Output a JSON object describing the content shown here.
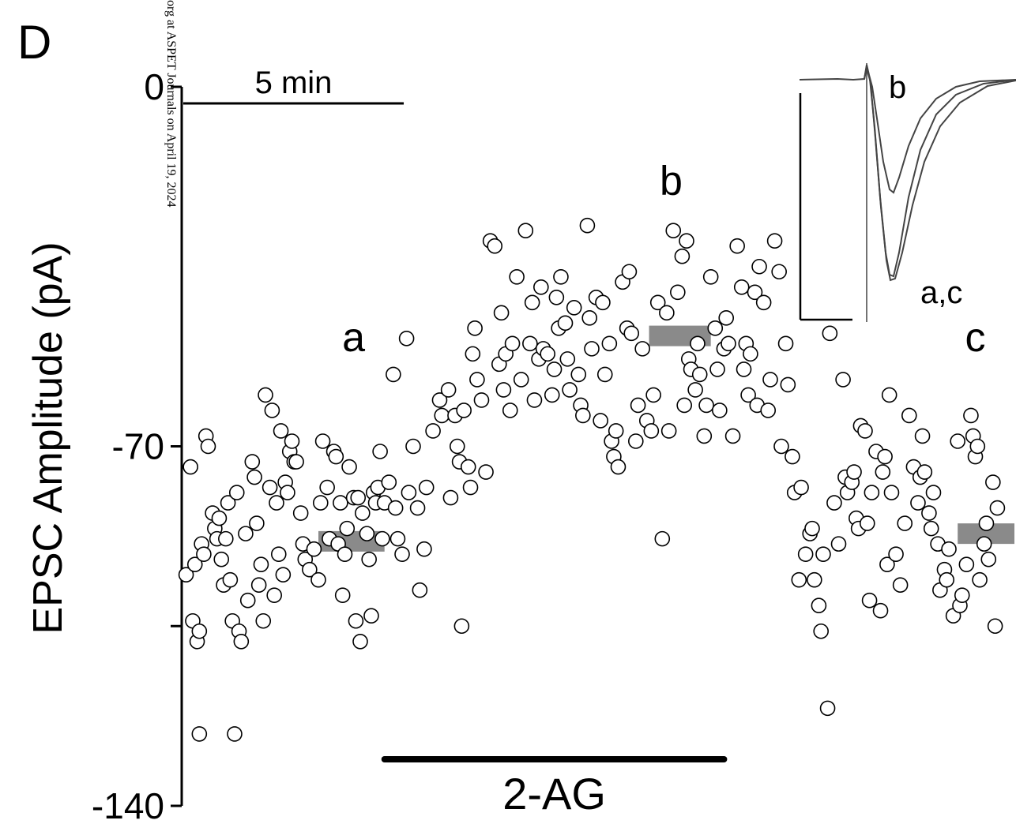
{
  "chart_data": {
    "type": "scatter",
    "panel_label": "D",
    "ylabel": "EPSC Amplitude (pA)",
    "xlabel": "",
    "ylim": [
      -140,
      0
    ],
    "yticks": [
      {
        "value": 0,
        "label": "0"
      },
      {
        "value": -70,
        "label": "-70"
      },
      {
        "value": -140,
        "label": "-140"
      }
    ],
    "x_units": "min",
    "xlim": [
      0,
      18.6
    ],
    "time_scale_bar": {
      "label": "5 min",
      "minutes": 5
    },
    "drug": {
      "label": "2-AG",
      "start_min": 4.6,
      "end_min": 12.3
    },
    "epoch_labels": [
      {
        "label": "a",
        "x": 3.9,
        "y": -51.5
      },
      {
        "label": "b",
        "x": 11.1,
        "y": -21.0
      },
      {
        "label": "c",
        "x": 18.0,
        "y": -51.5
      }
    ],
    "epoch_means": [
      {
        "label": "a",
        "x_start": 3.1,
        "x_end": 4.6,
        "y": -88.5
      },
      {
        "label": "b",
        "x_start": 10.6,
        "x_end": 12.0,
        "y": -48.5
      },
      {
        "label": "c",
        "x_start": 17.6,
        "x_end": 19.0,
        "y": -87.0
      }
    ],
    "inset": {
      "labels": {
        "top": "b",
        "bottom": "a,c"
      },
      "traces": [
        "b",
        "a",
        "c"
      ]
    },
    "watermark": "org at ASPET Journals on April 19, 2024",
    "points": [
      [
        0.1,
        -95
      ],
      [
        0.2,
        -74
      ],
      [
        0.25,
        -104
      ],
      [
        0.3,
        -93
      ],
      [
        0.35,
        -108
      ],
      [
        0.4,
        -106
      ],
      [
        0.4,
        -126
      ],
      [
        0.45,
        -89
      ],
      [
        0.5,
        -91
      ],
      [
        0.55,
        -68
      ],
      [
        0.6,
        -70
      ],
      [
        0.7,
        -83
      ],
      [
        0.75,
        -86
      ],
      [
        0.8,
        -88
      ],
      [
        0.85,
        -84
      ],
      [
        0.9,
        -92
      ],
      [
        0.95,
        -97
      ],
      [
        1.0,
        -88
      ],
      [
        1.05,
        -81
      ],
      [
        1.1,
        -96
      ],
      [
        1.15,
        -104
      ],
      [
        1.2,
        -126
      ],
      [
        1.25,
        -79
      ],
      [
        1.3,
        -106
      ],
      [
        1.35,
        -108
      ],
      [
        1.45,
        -87
      ],
      [
        1.5,
        -100
      ],
      [
        1.6,
        -73
      ],
      [
        1.65,
        -76
      ],
      [
        1.7,
        -85
      ],
      [
        1.75,
        -97
      ],
      [
        1.8,
        -93
      ],
      [
        1.85,
        -104
      ],
      [
        1.9,
        -60
      ],
      [
        2.0,
        -78
      ],
      [
        2.05,
        -63
      ],
      [
        2.1,
        -99
      ],
      [
        2.15,
        -81
      ],
      [
        2.2,
        -91
      ],
      [
        2.25,
        -67
      ],
      [
        2.3,
        -95
      ],
      [
        2.35,
        -77
      ],
      [
        2.4,
        -79
      ],
      [
        2.45,
        -71
      ],
      [
        2.5,
        -69
      ],
      [
        2.55,
        -73
      ],
      [
        2.6,
        -73
      ],
      [
        2.7,
        -83
      ],
      [
        2.75,
        -89
      ],
      [
        2.8,
        -92
      ],
      [
        2.9,
        -94
      ],
      [
        3.0,
        -90
      ],
      [
        3.1,
        -96
      ],
      [
        3.15,
        -81
      ],
      [
        3.2,
        -69
      ],
      [
        3.3,
        -78
      ],
      [
        3.35,
        -88
      ],
      [
        3.45,
        -71
      ],
      [
        3.5,
        -72
      ],
      [
        3.55,
        -89
      ],
      [
        3.6,
        -81
      ],
      [
        3.65,
        -99
      ],
      [
        3.7,
        -91
      ],
      [
        3.75,
        -86
      ],
      [
        3.8,
        -74
      ],
      [
        3.9,
        -80
      ],
      [
        3.95,
        -104
      ],
      [
        4.0,
        -80
      ],
      [
        4.05,
        -108
      ],
      [
        4.1,
        -83
      ],
      [
        4.2,
        -87
      ],
      [
        4.25,
        -92
      ],
      [
        4.3,
        -103
      ],
      [
        4.35,
        -79
      ],
      [
        4.4,
        -81
      ],
      [
        4.45,
        -78
      ],
      [
        4.5,
        -71
      ],
      [
        4.55,
        -88
      ],
      [
        4.6,
        -81
      ],
      [
        4.7,
        -77
      ],
      [
        4.8,
        -56
      ],
      [
        4.85,
        -82
      ],
      [
        4.9,
        -88
      ],
      [
        5.0,
        -91
      ],
      [
        5.1,
        -49
      ],
      [
        5.15,
        -79
      ],
      [
        5.25,
        -70
      ],
      [
        5.35,
        -82
      ],
      [
        5.4,
        -98
      ],
      [
        5.5,
        -90
      ],
      [
        5.55,
        -78
      ],
      [
        5.7,
        -67
      ],
      [
        5.85,
        -61
      ],
      [
        5.9,
        -64
      ],
      [
        6.05,
        -59
      ],
      [
        6.1,
        -80
      ],
      [
        6.2,
        -64
      ],
      [
        6.25,
        -70
      ],
      [
        6.3,
        -73
      ],
      [
        6.35,
        -105
      ],
      [
        6.4,
        -63
      ],
      [
        6.5,
        -74
      ],
      [
        6.55,
        -78
      ],
      [
        6.6,
        -52
      ],
      [
        6.65,
        -47
      ],
      [
        6.7,
        -57
      ],
      [
        6.8,
        -61
      ],
      [
        6.9,
        -75
      ],
      [
        7.0,
        -30
      ],
      [
        7.1,
        -31
      ],
      [
        7.2,
        -54
      ],
      [
        7.25,
        -44
      ],
      [
        7.3,
        -59
      ],
      [
        7.35,
        -52
      ],
      [
        7.45,
        -63
      ],
      [
        7.5,
        -50
      ],
      [
        7.6,
        -37
      ],
      [
        7.7,
        -57
      ],
      [
        7.8,
        -28
      ],
      [
        7.9,
        -50
      ],
      [
        7.95,
        -42
      ],
      [
        8.0,
        -61
      ],
      [
        8.1,
        -53
      ],
      [
        8.15,
        -39
      ],
      [
        8.2,
        -51
      ],
      [
        8.3,
        -52
      ],
      [
        8.4,
        -60
      ],
      [
        8.45,
        -55
      ],
      [
        8.5,
        -41
      ],
      [
        8.55,
        -47
      ],
      [
        8.6,
        -37
      ],
      [
        8.7,
        -46
      ],
      [
        8.75,
        -53
      ],
      [
        8.8,
        -59
      ],
      [
        8.9,
        -43
      ],
      [
        9.0,
        -56
      ],
      [
        9.05,
        -62
      ],
      [
        9.1,
        -64
      ],
      [
        9.2,
        -27
      ],
      [
        9.25,
        -45
      ],
      [
        9.3,
        -51
      ],
      [
        9.4,
        -41
      ],
      [
        9.5,
        -65
      ],
      [
        9.55,
        -42
      ],
      [
        9.6,
        -56
      ],
      [
        9.7,
        -50
      ],
      [
        9.75,
        -69
      ],
      [
        9.8,
        -72
      ],
      [
        9.85,
        -67
      ],
      [
        9.9,
        -74
      ],
      [
        10.0,
        -38
      ],
      [
        10.1,
        -47
      ],
      [
        10.15,
        -36
      ],
      [
        10.2,
        -48
      ],
      [
        10.3,
        -69
      ],
      [
        10.35,
        -62
      ],
      [
        10.45,
        -51
      ],
      [
        10.55,
        -65
      ],
      [
        10.65,
        -67
      ],
      [
        10.7,
        -60
      ],
      [
        10.8,
        -42
      ],
      [
        10.9,
        -88
      ],
      [
        11.0,
        -44
      ],
      [
        11.05,
        -67
      ],
      [
        11.15,
        -28
      ],
      [
        11.25,
        -40
      ],
      [
        11.35,
        -33
      ],
      [
        11.4,
        -62
      ],
      [
        11.45,
        -30
      ],
      [
        11.5,
        -53
      ],
      [
        11.55,
        -55
      ],
      [
        11.65,
        -59
      ],
      [
        11.7,
        -50
      ],
      [
        11.75,
        -56
      ],
      [
        11.85,
        -68
      ],
      [
        11.9,
        -62
      ],
      [
        12.0,
        -37
      ],
      [
        12.1,
        -47
      ],
      [
        12.15,
        -55
      ],
      [
        12.2,
        -63
      ],
      [
        12.3,
        -51
      ],
      [
        12.35,
        -45
      ],
      [
        12.4,
        -50
      ],
      [
        12.5,
        -68
      ],
      [
        12.6,
        -31
      ],
      [
        12.7,
        -39
      ],
      [
        12.75,
        -55
      ],
      [
        12.8,
        -50
      ],
      [
        12.85,
        -60
      ],
      [
        12.9,
        -52
      ],
      [
        13.0,
        -40
      ],
      [
        13.05,
        -62
      ],
      [
        13.1,
        -35
      ],
      [
        13.2,
        -42
      ],
      [
        13.3,
        -63
      ],
      [
        13.35,
        -57
      ],
      [
        13.45,
        -30
      ],
      [
        13.55,
        -36
      ],
      [
        13.6,
        -70
      ],
      [
        13.7,
        -50
      ],
      [
        13.75,
        -58
      ],
      [
        13.85,
        -72
      ],
      [
        13.9,
        -79
      ],
      [
        14.0,
        -96
      ],
      [
        14.05,
        -78
      ],
      [
        14.15,
        -91
      ],
      [
        14.25,
        -87
      ],
      [
        14.3,
        -86
      ],
      [
        14.35,
        -96
      ],
      [
        14.45,
        -101
      ],
      [
        14.5,
        -106
      ],
      [
        14.55,
        -91
      ],
      [
        14.65,
        -121
      ],
      [
        14.7,
        -48
      ],
      [
        14.8,
        -81
      ],
      [
        14.9,
        -89
      ],
      [
        15.0,
        -57
      ],
      [
        15.05,
        -76
      ],
      [
        15.1,
        -79
      ],
      [
        15.2,
        -77
      ],
      [
        15.25,
        -75
      ],
      [
        15.3,
        -84
      ],
      [
        15.35,
        -86
      ],
      [
        15.4,
        -66
      ],
      [
        15.5,
        -67
      ],
      [
        15.55,
        -85
      ],
      [
        15.6,
        -100
      ],
      [
        15.65,
        -79
      ],
      [
        15.75,
        -71
      ],
      [
        15.85,
        -102
      ],
      [
        15.9,
        -75
      ],
      [
        15.95,
        -72
      ],
      [
        16.0,
        -93
      ],
      [
        16.05,
        -60
      ],
      [
        16.1,
        -79
      ],
      [
        16.2,
        -91
      ],
      [
        16.3,
        -97
      ],
      [
        16.4,
        -85
      ],
      [
        16.5,
        -64
      ],
      [
        16.6,
        -74
      ],
      [
        16.7,
        -81
      ],
      [
        16.75,
        -76
      ],
      [
        16.8,
        -68
      ],
      [
        16.85,
        -75
      ],
      [
        16.95,
        -83
      ],
      [
        17.0,
        -86
      ],
      [
        17.05,
        -79
      ],
      [
        17.15,
        -89
      ],
      [
        17.2,
        -98
      ],
      [
        17.3,
        -94
      ],
      [
        17.35,
        -96
      ],
      [
        17.4,
        -90
      ],
      [
        17.5,
        -103
      ],
      [
        17.6,
        -69
      ],
      [
        17.65,
        -101
      ],
      [
        17.7,
        -99
      ],
      [
        17.8,
        -93
      ],
      [
        17.9,
        -64
      ],
      [
        17.95,
        -68
      ],
      [
        18.0,
        -72
      ],
      [
        18.05,
        -70
      ],
      [
        18.1,
        -96
      ],
      [
        18.2,
        -89
      ],
      [
        18.25,
        -85
      ],
      [
        18.3,
        -92
      ],
      [
        18.4,
        -77
      ],
      [
        18.45,
        -105
      ],
      [
        18.5,
        -82
      ]
    ]
  }
}
